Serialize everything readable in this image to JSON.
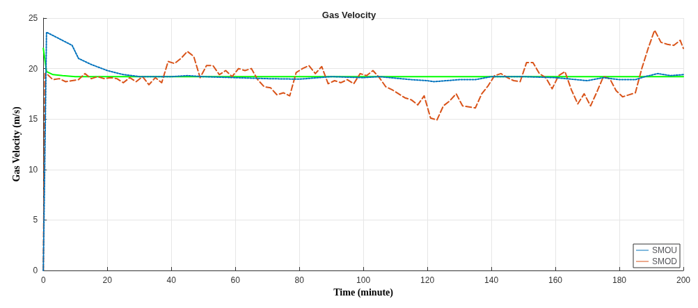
{
  "chart_data": {
    "type": "line",
    "title": "Gas Velocity",
    "xlabel": "Time (minute)",
    "ylabel": "Gas Velocity (m/s)",
    "xlim": [
      0,
      200
    ],
    "xticks": [
      0,
      20,
      40,
      60,
      80,
      100,
      120,
      140,
      160,
      180,
      200
    ],
    "ylim": [
      0,
      25
    ],
    "yticks": [
      0,
      5,
      10,
      15,
      20,
      25
    ],
    "grid": true,
    "legend": "bottom right",
    "marker": "none",
    "series": [
      {
        "name": "SMOU",
        "color": "#0072bd",
        "line_style": "dotted",
        "x": [
          0,
          1,
          9,
          11,
          15,
          20,
          25,
          30,
          40,
          45,
          50,
          60,
          70,
          80,
          90,
          100,
          105,
          115,
          120,
          122,
          130,
          135,
          140,
          150,
          160,
          170,
          175,
          180,
          185,
          188,
          192,
          196,
          200
        ],
        "values": [
          0,
          23.6,
          22.3,
          21,
          20.4,
          19.8,
          19.4,
          19.2,
          19.2,
          19.3,
          19.2,
          19.1,
          19,
          18.95,
          19.2,
          19.1,
          19.2,
          18.9,
          18.8,
          18.7,
          18.9,
          18.9,
          19.2,
          19.2,
          19.1,
          18.8,
          19.1,
          18.9,
          18.9,
          19.2,
          19.5,
          19.3,
          19.4
        ]
      },
      {
        "name": "SMOD",
        "color": "#d95319",
        "line_style": "dashed",
        "x": [
          0,
          0.5,
          1,
          3,
          5,
          7,
          9,
          11,
          13,
          15,
          17,
          19,
          21,
          23,
          25,
          27,
          29,
          31,
          33,
          35,
          37,
          39,
          41,
          43,
          45,
          47,
          49,
          51,
          53,
          55,
          57,
          59,
          61,
          63,
          65,
          67,
          69,
          71,
          73,
          75,
          77,
          79,
          81,
          83,
          85,
          87,
          89,
          91,
          93,
          95,
          97,
          99,
          101,
          103,
          105,
          107,
          109,
          111,
          113,
          115,
          117,
          119,
          121,
          123,
          125,
          127,
          129,
          131,
          133,
          135,
          137,
          139,
          141,
          143,
          145,
          147,
          149,
          151,
          153,
          155,
          157,
          159,
          161,
          163,
          165,
          167,
          169,
          171,
          173,
          175,
          177,
          179,
          181,
          183,
          185,
          187,
          189,
          191,
          193,
          195,
          197,
          199,
          200
        ],
        "values": [
          0,
          19.5,
          19.5,
          18.9,
          19,
          18.7,
          18.8,
          18.9,
          19.5,
          19,
          19.2,
          19,
          19.1,
          19,
          18.6,
          19.1,
          18.7,
          19.2,
          18.4,
          19.1,
          18.6,
          20.7,
          20.5,
          21,
          21.7,
          21.2,
          19.1,
          20.3,
          20.3,
          19.4,
          19.8,
          19.2,
          20,
          19.8,
          20,
          18.9,
          18.2,
          18.1,
          17.4,
          17.6,
          17.3,
          19.6,
          20,
          20.3,
          19.5,
          20.2,
          18.5,
          18.8,
          18.6,
          18.9,
          18.5,
          19.5,
          19.3,
          19.8,
          19.1,
          18.2,
          17.9,
          17.5,
          17.1,
          16.9,
          16.4,
          17.3,
          15.1,
          14.9,
          16.3,
          16.8,
          17.5,
          16.3,
          16.2,
          16.1,
          17.5,
          18.3,
          19.3,
          19.5,
          19.1,
          18.8,
          18.7,
          20.6,
          20.6,
          19.5,
          19.1,
          18,
          19.3,
          19.7,
          17.9,
          16.5,
          17.5,
          16.3,
          17.7,
          19.2,
          19,
          17.8,
          17.2,
          17.4,
          17.6,
          20,
          22,
          23.8,
          22.6,
          22.4,
          22.3,
          22.8,
          22
        ]
      },
      {
        "color": "#00ff00",
        "line_style": "solid",
        "x": [
          0,
          1,
          3,
          6,
          10,
          200
        ],
        "values": [
          22,
          19.7,
          19.4,
          19.3,
          19.2,
          19.2
        ]
      }
    ]
  }
}
